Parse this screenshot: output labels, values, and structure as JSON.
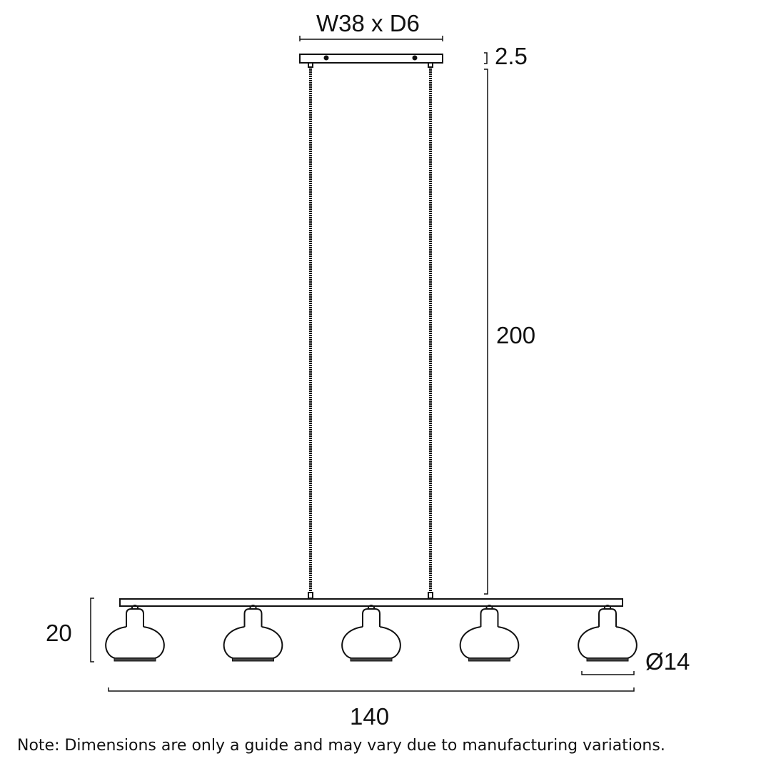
{
  "dimensions": {
    "canopy": "W38 x D6",
    "canopy_height": "2.5",
    "drop": "200",
    "shade_height": "20",
    "shade_diameter": "Ø14",
    "overall_width": "140"
  },
  "note": "Note: Dimensions are only a guide and may vary due to manufacturing variations.",
  "shade_count": 5,
  "line_color": "#111111"
}
